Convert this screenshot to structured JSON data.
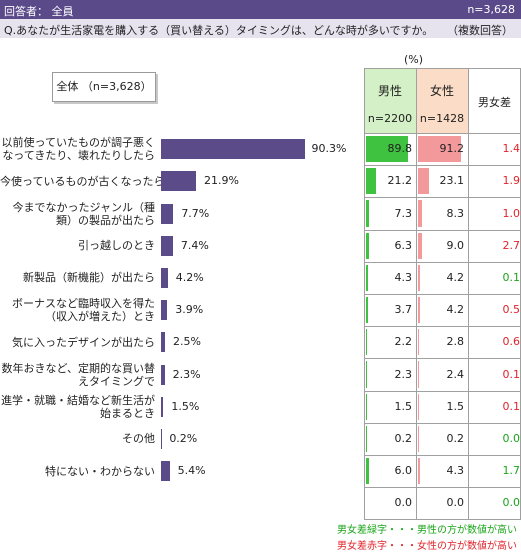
{
  "header": {
    "respondents": "回答者： 全員",
    "n_total": "n=3,628"
  },
  "question": {
    "text": "Q.あなたが生活家電を購入する（買い替える）タイミングは、どんな時が多いですか。",
    "type": "（複数回答）"
  },
  "total_box": "全体 （n=3,628）",
  "unit": "(%)",
  "table_header": {
    "male": "男性",
    "male_n": "n=2200",
    "female": "女性",
    "female_n": "n=1428",
    "diff": "男女差"
  },
  "legend": {
    "green": "男女差緑字・・・男性の方が数値が高い",
    "red": "男女差赤字・・・女性の方が数値が高い"
  },
  "colors": {
    "header_bg": "#5a4a8a",
    "total_bar": "#5b4b88",
    "male_bar": "#3fc23f",
    "female_bar": "#f4999b",
    "male_header": "#d4f0c6",
    "female_header": "#fbdcc6",
    "diff_green": "#1aa51a",
    "diff_red": "#e0242b"
  },
  "chart_data": {
    "type": "bar",
    "orientation": "horizontal",
    "xlim": [
      0,
      100
    ],
    "categories": [
      [
        "以前使っていたものが調子悪く",
        "なってきたり、壊れたりしたら"
      ],
      [
        "今使っているものが古くなったら"
      ],
      [
        "今までなかったジャンル（種",
        "類）の製品が出たら"
      ],
      [
        "引っ越しのとき"
      ],
      [
        "新製品（新機能）が出たら"
      ],
      [
        "ボーナスなど臨時収入を得た",
        "（収入が増えた）とき"
      ],
      [
        "気に入ったデザインが出たら"
      ],
      [
        "数年おきなど、定期的な買い替",
        "えタイミングで"
      ],
      [
        "進学・就職・結婚など新生活が",
        "始まるとき"
      ],
      [
        "その他"
      ],
      [
        "特にない・わからない"
      ],
      [
        ""
      ]
    ],
    "series": [
      {
        "name": "全体",
        "values": [
          90.3,
          21.9,
          7.7,
          7.4,
          4.2,
          3.9,
          2.5,
          2.3,
          1.5,
          0.2,
          5.4,
          null
        ]
      },
      {
        "name": "男性",
        "values": [
          89.8,
          21.2,
          7.3,
          6.3,
          4.3,
          3.7,
          2.2,
          2.3,
          1.5,
          0.2,
          6.0,
          0.0
        ]
      },
      {
        "name": "女性",
        "values": [
          91.2,
          23.1,
          8.3,
          9.0,
          4.2,
          4.2,
          2.8,
          2.4,
          1.5,
          0.2,
          4.3,
          0.0
        ]
      },
      {
        "name": "男女差",
        "values": [
          1.4,
          1.9,
          1.0,
          2.7,
          0.1,
          0.5,
          0.6,
          0.1,
          0.1,
          0.0,
          1.7,
          0.0
        ]
      }
    ],
    "diff_color": [
      "red",
      "red",
      "red",
      "red",
      "green",
      "red",
      "red",
      "red",
      "red",
      "green",
      "green",
      "green"
    ]
  }
}
